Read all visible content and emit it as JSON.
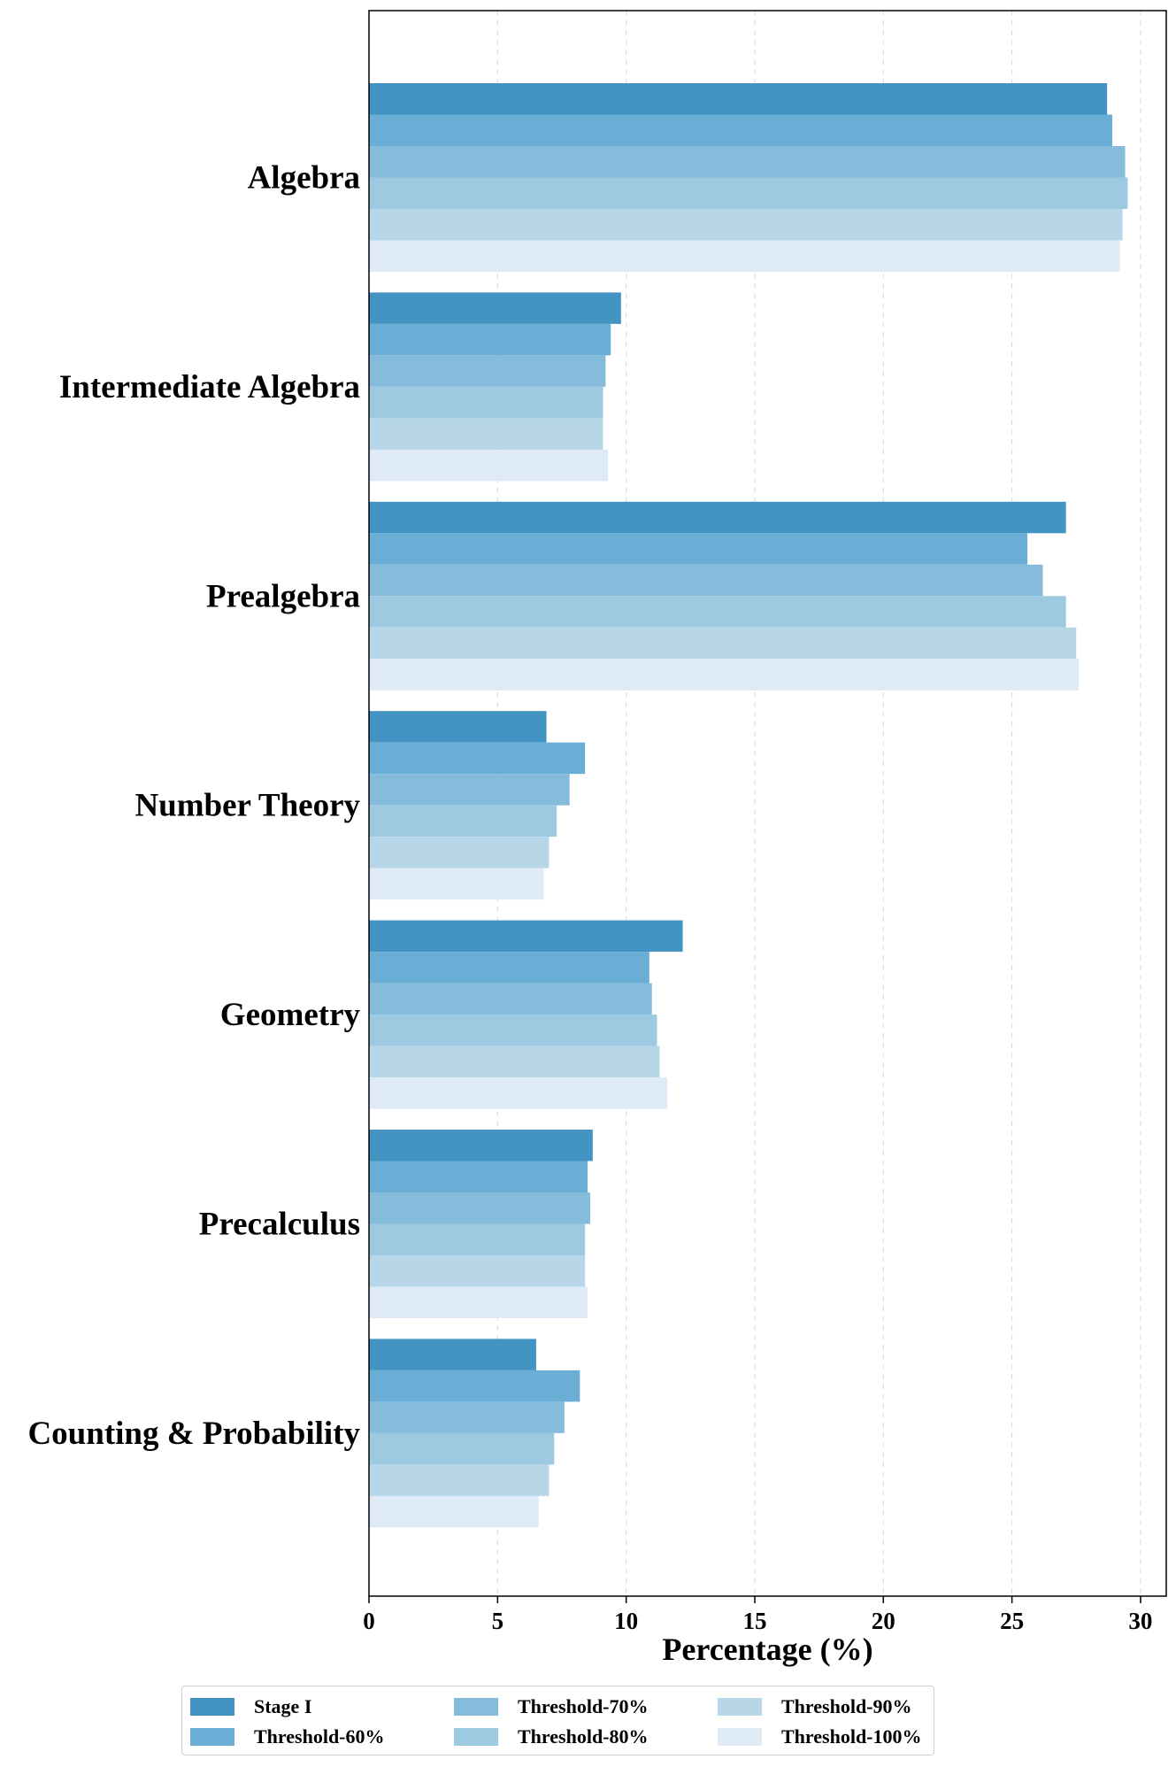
{
  "chart_data": {
    "type": "bar",
    "orientation": "horizontal",
    "xlabel": "Percentage (%)",
    "ylabel": "",
    "xlim": [
      0,
      31
    ],
    "xticks": [
      0,
      5,
      10,
      15,
      20,
      25,
      30
    ],
    "grid": "vertical dashed",
    "legend_position": "bottom",
    "categories": [
      "Algebra",
      "Intermediate Algebra",
      "Prealgebra",
      "Number Theory",
      "Geometry",
      "Precalculus",
      "Counting & Probability"
    ],
    "series": [
      {
        "name": "Stage I",
        "color": "#4393c3",
        "values": [
          28.7,
          9.8,
          27.1,
          6.9,
          12.2,
          8.7,
          6.5
        ]
      },
      {
        "name": "Threshold-60%",
        "color": "#6aaed6",
        "values": [
          28.9,
          9.4,
          25.6,
          8.4,
          10.9,
          8.5,
          8.2
        ]
      },
      {
        "name": "Threshold-70%",
        "color": "#85bbdb",
        "values": [
          29.4,
          9.2,
          26.2,
          7.8,
          11.0,
          8.6,
          7.6
        ]
      },
      {
        "name": "Threshold-80%",
        "color": "#9ecae1",
        "values": [
          29.5,
          9.1,
          27.1,
          7.3,
          11.2,
          8.4,
          7.2
        ]
      },
      {
        "name": "Threshold-90%",
        "color": "#b7d6e8",
        "values": [
          29.3,
          9.1,
          27.5,
          7.0,
          11.3,
          8.4,
          7.0
        ]
      },
      {
        "name": "Threshold-100%",
        "color": "#deebf7",
        "values": [
          29.2,
          9.3,
          27.6,
          6.8,
          11.6,
          8.5,
          6.6
        ]
      }
    ]
  }
}
